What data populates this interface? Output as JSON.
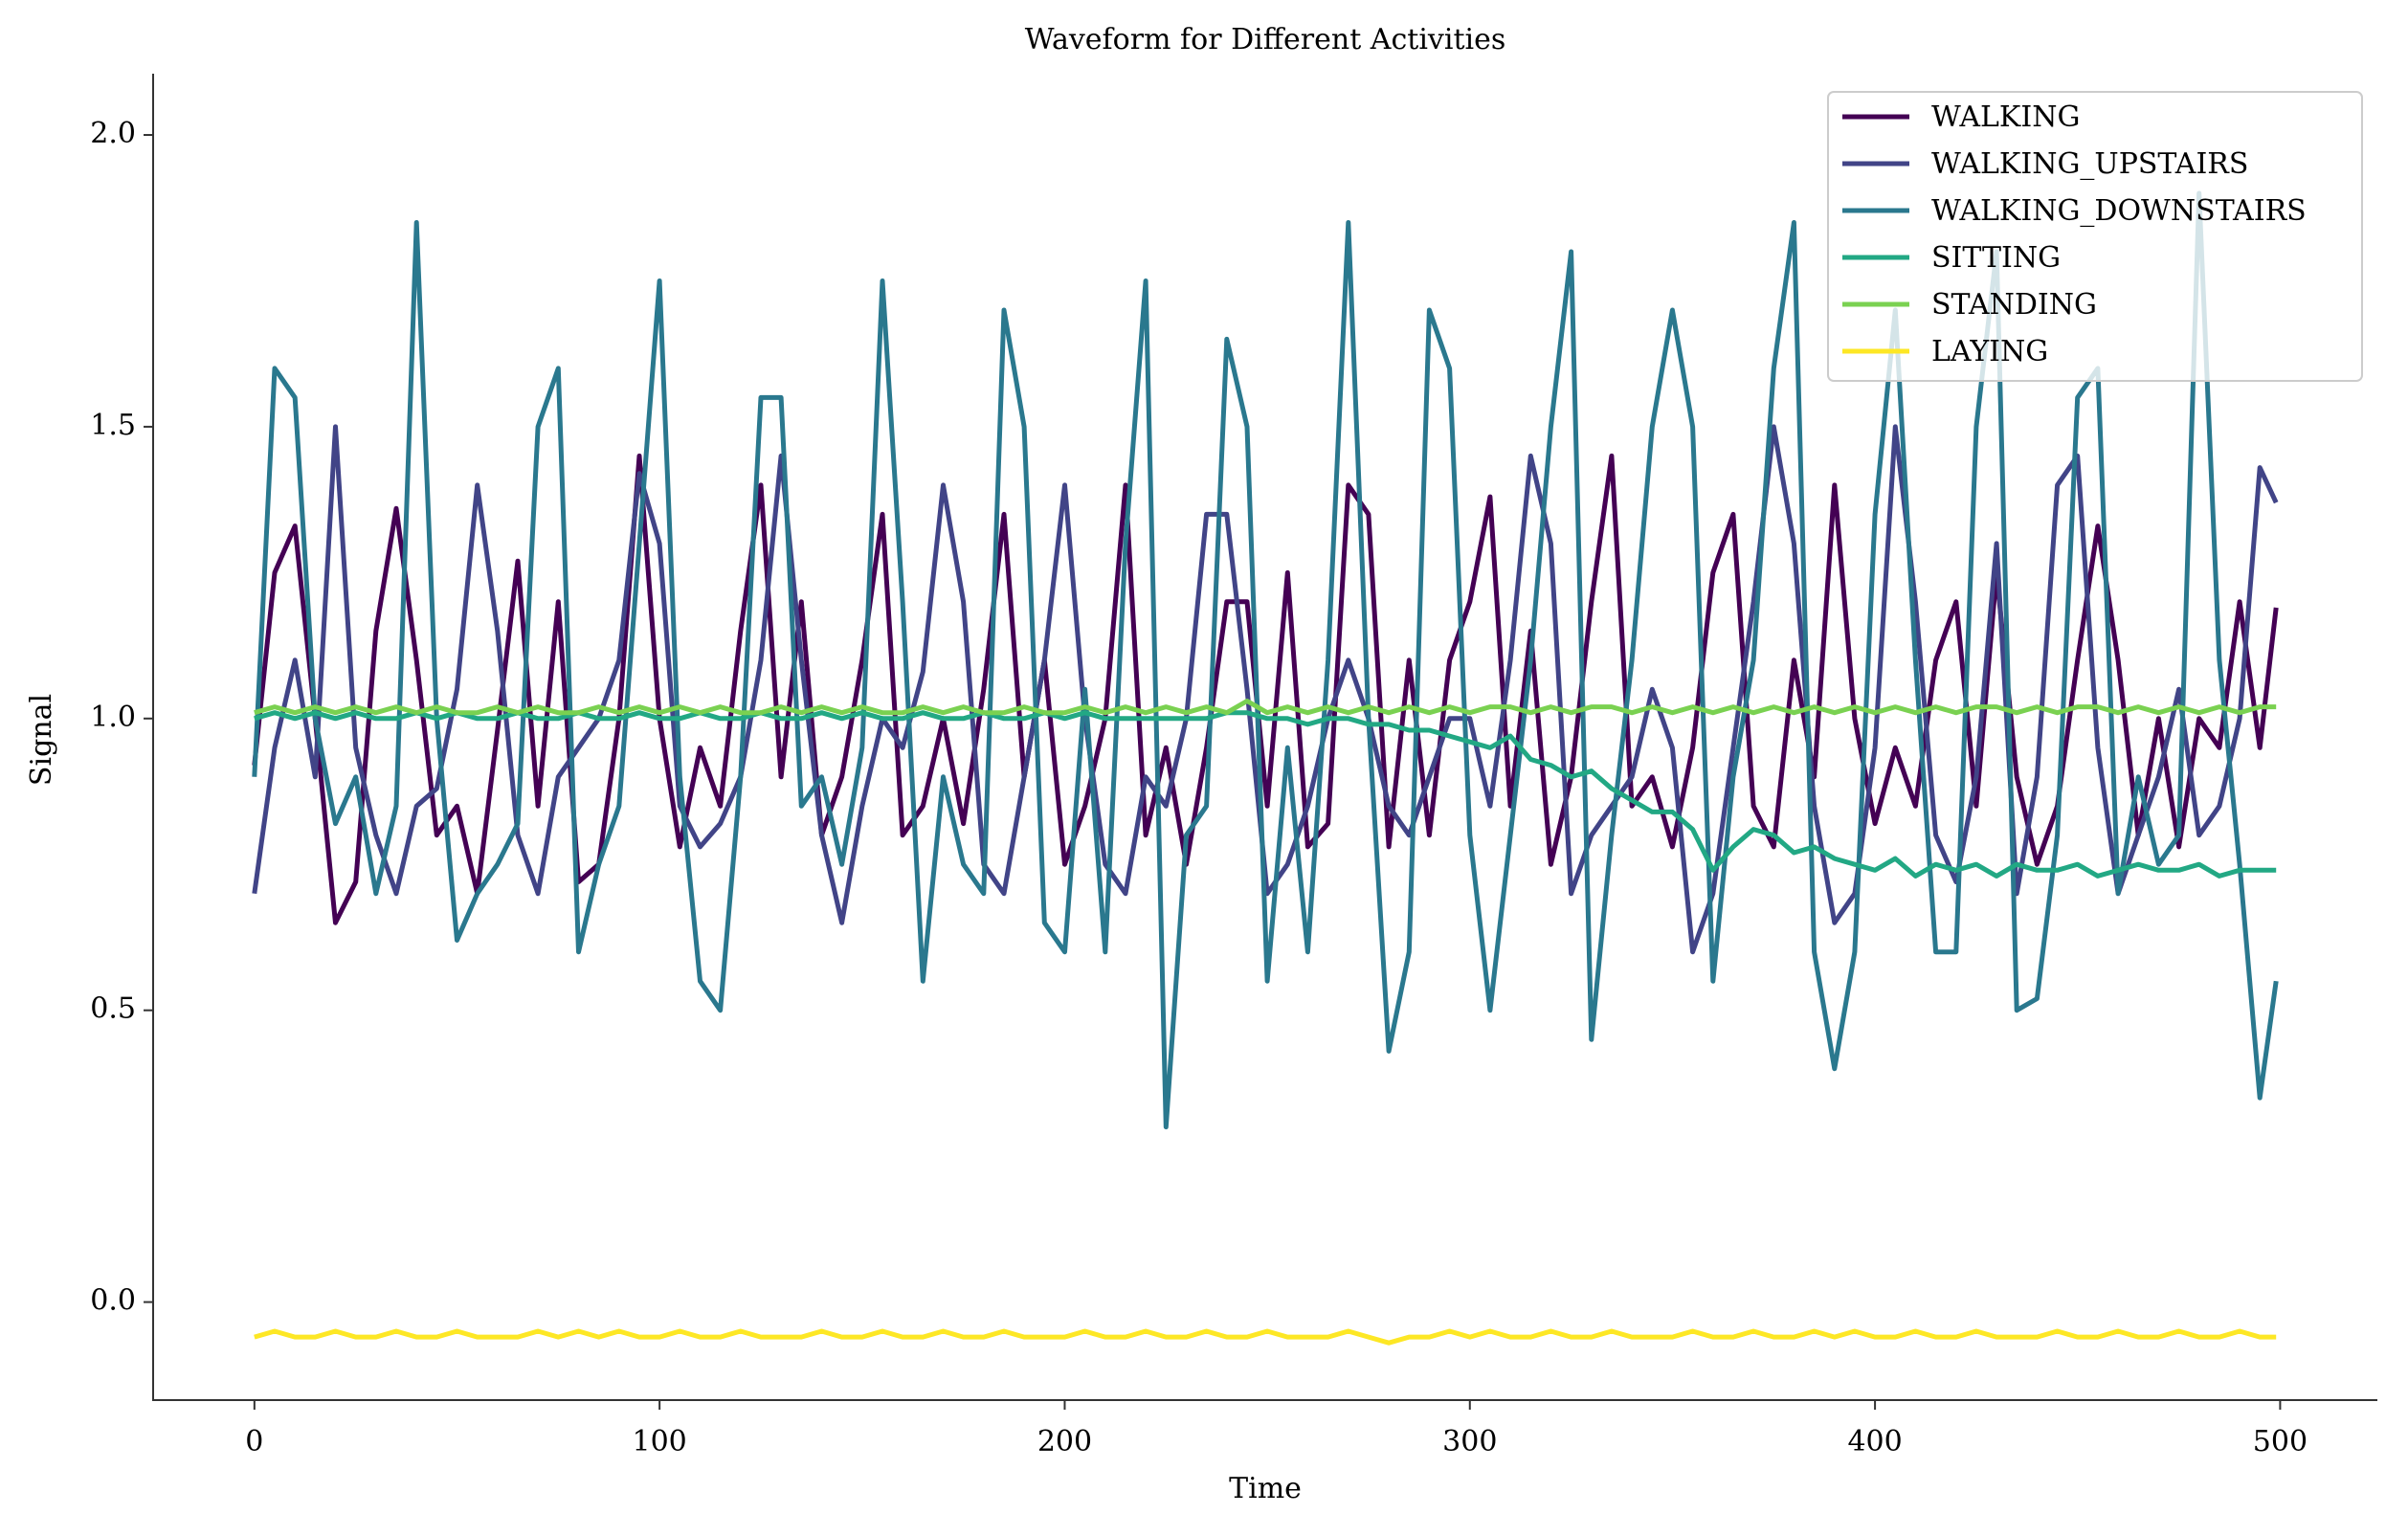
{
  "chart_data": {
    "type": "line",
    "title": "Waveform for Different Activities",
    "x_label": "Time",
    "y_label": "Signal",
    "x": [
      0,
      5,
      10,
      15,
      20,
      25,
      30,
      35,
      40,
      45,
      50,
      55,
      60,
      65,
      70,
      75,
      80,
      85,
      90,
      95,
      100,
      105,
      110,
      115,
      120,
      125,
      130,
      135,
      140,
      145,
      150,
      155,
      160,
      165,
      170,
      175,
      180,
      185,
      190,
      195,
      200,
      205,
      210,
      215,
      220,
      225,
      230,
      235,
      240,
      245,
      250,
      255,
      260,
      265,
      270,
      275,
      280,
      285,
      290,
      295,
      300,
      305,
      310,
      315,
      320,
      325,
      330,
      335,
      340,
      345,
      350,
      355,
      360,
      365,
      370,
      375,
      380,
      385,
      390,
      395,
      400,
      405,
      410,
      415,
      420,
      425,
      430,
      435,
      440,
      445,
      450,
      455,
      460,
      465,
      470,
      475,
      480,
      485,
      490,
      495,
      499
    ],
    "series": [
      {
        "name": "WALKING",
        "color": "#440154",
        "values": [
          0.92,
          1.25,
          1.33,
          1.0,
          0.65,
          0.72,
          1.15,
          1.36,
          1.1,
          0.8,
          0.85,
          0.7,
          0.98,
          1.27,
          0.85,
          1.2,
          0.72,
          0.75,
          1.0,
          1.45,
          1.0,
          0.78,
          0.95,
          0.85,
          1.15,
          1.4,
          0.9,
          1.2,
          0.8,
          0.9,
          1.1,
          1.35,
          0.8,
          0.85,
          1.0,
          0.82,
          1.05,
          1.35,
          0.9,
          1.1,
          0.75,
          0.85,
          1.0,
          1.4,
          0.8,
          0.95,
          0.75,
          0.95,
          1.2,
          1.2,
          0.85,
          1.25,
          0.78,
          0.82,
          1.4,
          1.35,
          0.78,
          1.1,
          0.8,
          1.1,
          1.2,
          1.38,
          0.85,
          1.15,
          0.75,
          0.9,
          1.2,
          1.45,
          0.85,
          0.9,
          0.78,
          0.95,
          1.25,
          1.35,
          0.85,
          0.78,
          1.1,
          0.9,
          1.4,
          1.0,
          0.82,
          0.95,
          0.85,
          1.1,
          1.2,
          0.85,
          1.25,
          0.9,
          0.75,
          0.85,
          1.1,
          1.33,
          1.1,
          0.8,
          1.0,
          0.78,
          1.0,
          0.95,
          1.2,
          0.95,
          1.19
        ]
      },
      {
        "name": "WALKING_UPSTAIRS",
        "color": "#414487",
        "values": [
          0.7,
          0.95,
          1.1,
          0.9,
          1.5,
          0.95,
          0.8,
          0.7,
          0.85,
          0.88,
          1.05,
          1.4,
          1.15,
          0.8,
          0.7,
          0.9,
          0.95,
          1.0,
          1.1,
          1.42,
          1.3,
          0.85,
          0.78,
          0.82,
          0.9,
          1.1,
          1.45,
          1.1,
          0.8,
          0.65,
          0.85,
          1.0,
          0.95,
          1.08,
          1.4,
          1.2,
          0.75,
          0.7,
          0.9,
          1.1,
          1.4,
          1.0,
          0.75,
          0.7,
          0.9,
          0.85,
          1.0,
          1.35,
          1.35,
          1.05,
          0.7,
          0.75,
          0.85,
          1.0,
          1.1,
          1.0,
          0.85,
          0.8,
          0.9,
          1.0,
          1.0,
          0.85,
          1.1,
          1.45,
          1.3,
          0.7,
          0.8,
          0.85,
          0.9,
          1.05,
          0.95,
          0.6,
          0.7,
          0.95,
          1.2,
          1.5,
          1.3,
          0.85,
          0.65,
          0.7,
          0.95,
          1.5,
          1.2,
          0.8,
          0.72,
          0.9,
          1.3,
          0.7,
          0.9,
          1.4,
          1.45,
          0.95,
          0.7,
          0.8,
          0.9,
          1.05,
          0.8,
          0.85,
          1.0,
          1.43,
          1.37
        ]
      },
      {
        "name": "WALKING_DOWNSTAIRS",
        "color": "#2a788e",
        "values": [
          0.9,
          1.6,
          1.55,
          1.0,
          0.82,
          0.9,
          0.7,
          0.85,
          1.85,
          1.0,
          0.62,
          0.7,
          0.75,
          0.82,
          1.5,
          1.6,
          0.6,
          0.75,
          0.85,
          1.3,
          1.75,
          0.9,
          0.55,
          0.5,
          0.9,
          1.55,
          1.55,
          0.85,
          0.9,
          0.75,
          0.95,
          1.75,
          1.2,
          0.55,
          0.9,
          0.75,
          0.7,
          1.7,
          1.5,
          0.65,
          0.6,
          1.05,
          0.6,
          1.3,
          1.75,
          0.3,
          0.8,
          0.85,
          1.65,
          1.5,
          0.55,
          0.95,
          0.6,
          1.1,
          1.85,
          1.0,
          0.43,
          0.6,
          1.7,
          1.6,
          0.8,
          0.5,
          0.8,
          1.1,
          1.5,
          1.8,
          0.45,
          0.8,
          1.1,
          1.5,
          1.7,
          1.5,
          0.55,
          0.9,
          1.1,
          1.6,
          1.85,
          0.6,
          0.4,
          0.6,
          1.35,
          1.7,
          1.1,
          0.6,
          0.6,
          1.5,
          1.8,
          0.5,
          0.52,
          0.8,
          1.55,
          1.6,
          0.7,
          0.9,
          0.75,
          0.8,
          1.9,
          1.1,
          0.75,
          0.35,
          0.55
        ]
      },
      {
        "name": "SITTING",
        "color": "#22a884",
        "values": [
          1.0,
          1.01,
          1.0,
          1.01,
          1.0,
          1.01,
          1.0,
          1.0,
          1.01,
          1.0,
          1.01,
          1.0,
          1.0,
          1.01,
          1.0,
          1.0,
          1.01,
          1.0,
          1.0,
          1.01,
          1.0,
          1.0,
          1.01,
          1.0,
          1.0,
          1.01,
          1.0,
          1.0,
          1.01,
          1.0,
          1.01,
          1.0,
          1.0,
          1.01,
          1.0,
          1.0,
          1.01,
          1.0,
          1.0,
          1.01,
          1.0,
          1.01,
          1.0,
          1.0,
          1.0,
          1.0,
          1.0,
          1.0,
          1.01,
          1.01,
          1.0,
          1.0,
          0.99,
          1.0,
          1.0,
          0.99,
          0.99,
          0.98,
          0.98,
          0.97,
          0.96,
          0.95,
          0.97,
          0.93,
          0.92,
          0.9,
          0.91,
          0.88,
          0.86,
          0.84,
          0.84,
          0.81,
          0.74,
          0.78,
          0.81,
          0.8,
          0.77,
          0.78,
          0.76,
          0.75,
          0.74,
          0.76,
          0.73,
          0.75,
          0.74,
          0.75,
          0.73,
          0.75,
          0.74,
          0.74,
          0.75,
          0.73,
          0.74,
          0.75,
          0.74,
          0.74,
          0.75,
          0.73,
          0.74,
          0.74,
          0.74
        ]
      },
      {
        "name": "STANDING",
        "color": "#7ad151",
        "values": [
          1.01,
          1.02,
          1.01,
          1.02,
          1.01,
          1.02,
          1.01,
          1.02,
          1.01,
          1.02,
          1.01,
          1.01,
          1.02,
          1.01,
          1.02,
          1.01,
          1.01,
          1.02,
          1.01,
          1.02,
          1.01,
          1.02,
          1.01,
          1.02,
          1.01,
          1.01,
          1.02,
          1.01,
          1.02,
          1.01,
          1.02,
          1.01,
          1.01,
          1.02,
          1.01,
          1.02,
          1.01,
          1.01,
          1.02,
          1.01,
          1.01,
          1.02,
          1.01,
          1.02,
          1.01,
          1.02,
          1.01,
          1.02,
          1.01,
          1.03,
          1.01,
          1.02,
          1.01,
          1.02,
          1.01,
          1.02,
          1.01,
          1.02,
          1.01,
          1.02,
          1.01,
          1.02,
          1.02,
          1.01,
          1.02,
          1.01,
          1.02,
          1.02,
          1.01,
          1.02,
          1.01,
          1.02,
          1.01,
          1.02,
          1.01,
          1.02,
          1.01,
          1.02,
          1.01,
          1.02,
          1.01,
          1.02,
          1.01,
          1.02,
          1.01,
          1.02,
          1.02,
          1.01,
          1.02,
          1.01,
          1.02,
          1.02,
          1.01,
          1.02,
          1.01,
          1.02,
          1.01,
          1.02,
          1.01,
          1.02,
          1.02
        ]
      },
      {
        "name": "LAYING",
        "color": "#fde725",
        "values": [
          -0.06,
          -0.05,
          -0.06,
          -0.06,
          -0.05,
          -0.06,
          -0.06,
          -0.05,
          -0.06,
          -0.06,
          -0.05,
          -0.06,
          -0.06,
          -0.06,
          -0.05,
          -0.06,
          -0.05,
          -0.06,
          -0.05,
          -0.06,
          -0.06,
          -0.05,
          -0.06,
          -0.06,
          -0.05,
          -0.06,
          -0.06,
          -0.06,
          -0.05,
          -0.06,
          -0.06,
          -0.05,
          -0.06,
          -0.06,
          -0.05,
          -0.06,
          -0.06,
          -0.05,
          -0.06,
          -0.06,
          -0.06,
          -0.05,
          -0.06,
          -0.06,
          -0.05,
          -0.06,
          -0.06,
          -0.05,
          -0.06,
          -0.06,
          -0.05,
          -0.06,
          -0.06,
          -0.06,
          -0.05,
          -0.06,
          -0.07,
          -0.06,
          -0.06,
          -0.05,
          -0.06,
          -0.05,
          -0.06,
          -0.06,
          -0.05,
          -0.06,
          -0.06,
          -0.05,
          -0.06,
          -0.06,
          -0.06,
          -0.05,
          -0.06,
          -0.06,
          -0.05,
          -0.06,
          -0.06,
          -0.05,
          -0.06,
          -0.05,
          -0.06,
          -0.06,
          -0.05,
          -0.06,
          -0.06,
          -0.05,
          -0.06,
          -0.06,
          -0.06,
          -0.05,
          -0.06,
          -0.06,
          -0.05,
          -0.06,
          -0.06,
          -0.05,
          -0.06,
          -0.06,
          -0.05,
          -0.06,
          -0.06
        ]
      }
    ],
    "xlim": [
      -25,
      524
    ],
    "ylim": [
      -0.168,
      2.105
    ],
    "xticks": [
      0,
      100,
      200,
      300,
      400,
      500
    ],
    "yticks": [
      {
        "value": 0,
        "label": "0.0"
      },
      0.5,
      {
        "value": 1,
        "label": "1.0"
      },
      1.5,
      {
        "value": 2,
        "label": "2.0"
      }
    ],
    "legend": "upper right"
  }
}
